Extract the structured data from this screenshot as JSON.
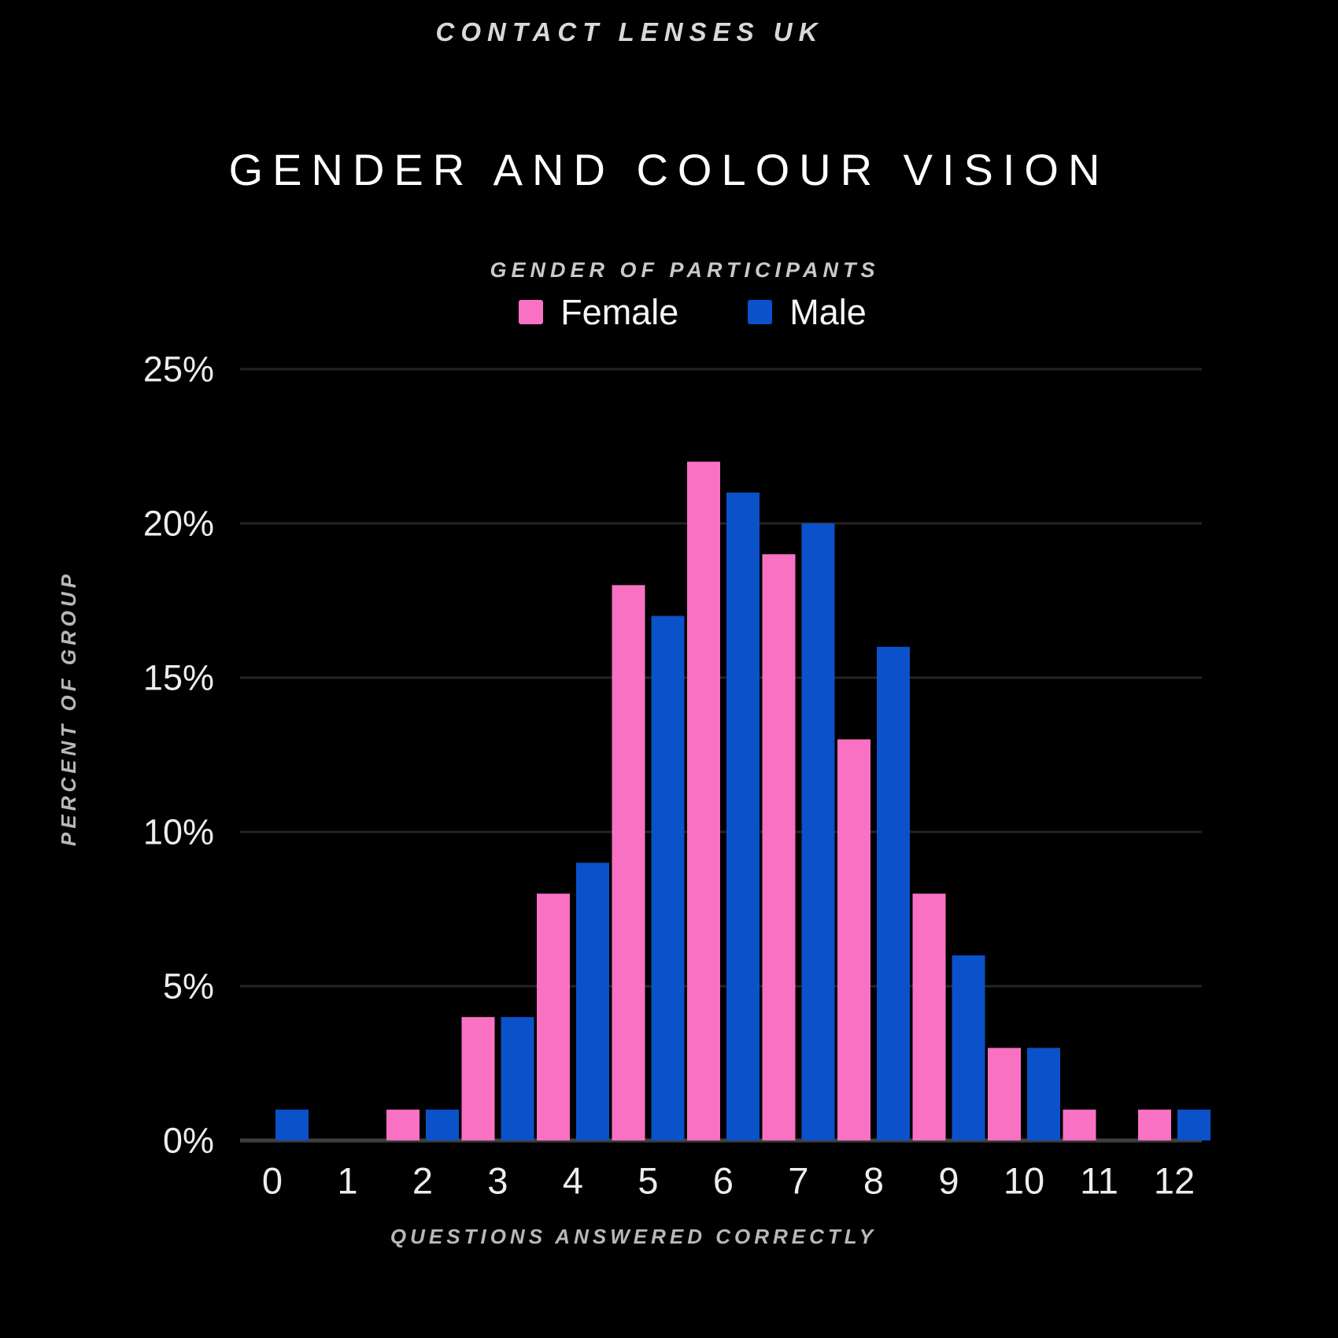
{
  "page": {
    "brand": "CONTACT LENSES UK",
    "title": "GENDER AND COLOUR VISION"
  },
  "legend": {
    "title": "GENDER OF PARTICIPANTS",
    "items": [
      {
        "label": "Female",
        "color": "#F971C3"
      },
      {
        "label": "Male",
        "color": "#0B51C9"
      }
    ]
  },
  "chart_data": {
    "type": "bar",
    "title": "GENDER AND COLOUR VISION",
    "subtitle": "CONTACT LENSES UK",
    "legend_title": "GENDER OF PARTICIPANTS",
    "xlabel": "QUESTIONS ANSWERED CORRECTLY",
    "ylabel": "PERCENT OF GROUP",
    "categories": [
      "0",
      "1",
      "2",
      "3",
      "4",
      "5",
      "6",
      "7",
      "8",
      "9",
      "10",
      "11",
      "12"
    ],
    "series": [
      {
        "name": "Female",
        "color": "#F971C3",
        "values": [
          0,
          0,
          1,
          4,
          8,
          18,
          22,
          19,
          13,
          8,
          3,
          1,
          1
        ]
      },
      {
        "name": "Male",
        "color": "#0B51C9",
        "values": [
          1,
          0,
          1,
          4,
          9,
          17,
          21,
          20,
          16,
          6,
          3,
          0,
          1
        ]
      }
    ],
    "ylim": [
      0,
      25
    ],
    "ytick_step": 5,
    "ytick_suffix": "%",
    "grid": true,
    "legend_position": "top"
  },
  "colors": {
    "background": "#000000",
    "gridline": "#242424",
    "axis_line": "#3e3e3e",
    "tick_text": "#ededed"
  }
}
